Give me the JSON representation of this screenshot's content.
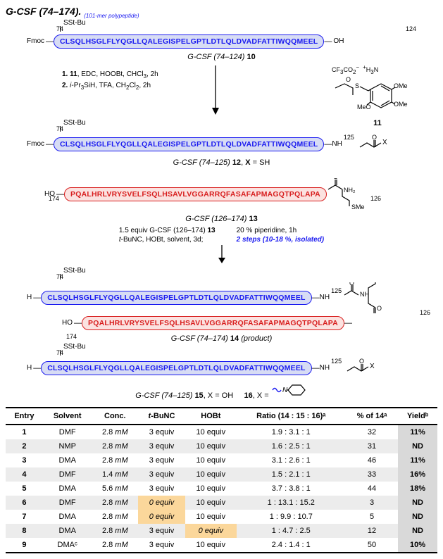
{
  "title": {
    "main": "G-CSF (74–174).",
    "sub": "(101-mer polypeptide)"
  },
  "seq": {
    "blue": "CLSQLHSGLFLYQGLLQALEGISPELGPTLDTLQLDVADFATTIWQQMEEL",
    "red": "PQALHRLVRYSVELFSQLHSAVLVGGARRQFASAFAPMAGQTPQLAPA"
  },
  "labels": {
    "sstbu": "SSt-Bu",
    "fmoc": "Fmoc",
    "oh": "OH",
    "h": "H",
    "ho": "HO",
    "nh": "NH",
    "nh2": "NH₂",
    "sme": "SMe",
    "pos74": "74",
    "pos124": "124",
    "pos125": "125",
    "pos126": "126",
    "pos174": "174",
    "gcsf_10": "G-CSF (74–124)",
    "num10": "10",
    "step1": "1. 11, EDC, HOOBt, CHCl₃, 2h",
    "step2": "2. i-Pr₃SiH, TFA, CH₂Cl₂, 2h",
    "salt": "CF₃CO₂⁻   ⁺H₃N",
    "num11": "11",
    "ome": "OMe",
    "meo": "MeO",
    "gcsf_12": "G-CSF (74–125)",
    "num12": "12",
    "xsh": ", X = SH",
    "gcsf_13": "G-CSF (126–174)",
    "num13": "13",
    "cond_left": "1.5 equiv G-CSF (126–174) 13\nt-BuNC, HOBt, solvent, 3d;",
    "cond_right_a": "20 % piperidine, 1h",
    "cond_right_b": "2 steps (10-18 %, isolated)",
    "gcsf_14": "G-CSF (74–174)",
    "num14": "14",
    "product": "(product)",
    "gcsf_15": "G-CSF (74–125)",
    "num15": "15",
    "xoh": ", X = OH",
    "num16": "16",
    "xeq": ", X ="
  },
  "table": {
    "headers": [
      "Entry",
      "Solvent",
      "Conc.",
      "t-BuNC",
      "HOBt",
      "Ratio (14 : 15 : 16)ᵃ",
      "% of 14ᵃ",
      "Yieldᵇ"
    ],
    "rows": [
      {
        "entry": "1",
        "solvent": "DMF",
        "conc": "2.8 mM",
        "tbunc": "3 equiv",
        "hobt": "10 equiv",
        "ratio": "1.9 : 3.1 : 1",
        "pct": "32",
        "yield": "11%",
        "hl": ""
      },
      {
        "entry": "2",
        "solvent": "NMP",
        "conc": "2.8 mM",
        "tbunc": "3 equiv",
        "hobt": "10 equiv",
        "ratio": "1.6 : 2.5 : 1",
        "pct": "31",
        "yield": "ND",
        "hl": ""
      },
      {
        "entry": "3",
        "solvent": "DMA",
        "conc": "2.8 mM",
        "tbunc": "3 equiv",
        "hobt": "10 equiv",
        "ratio": "3.1 : 2.6 : 1",
        "pct": "46",
        "yield": "11%",
        "hl": ""
      },
      {
        "entry": "4",
        "solvent": "DMF",
        "conc": "1.4 mM",
        "tbunc": "3 equiv",
        "hobt": "10 equiv",
        "ratio": "1.5 : 2.1 : 1",
        "pct": "33",
        "yield": "16%",
        "hl": ""
      },
      {
        "entry": "5",
        "solvent": "DMA",
        "conc": "5.6 mM",
        "tbunc": "3 equiv",
        "hobt": "10 equiv",
        "ratio": "3.7 : 3.8 : 1",
        "pct": "44",
        "yield": "18%",
        "hl": ""
      },
      {
        "entry": "6",
        "solvent": "DMF",
        "conc": "2.8 mM",
        "tbunc": "0 equiv",
        "hobt": "10 equiv",
        "ratio": "1 : 13.1 : 15.2",
        "pct": "3",
        "yield": "ND",
        "hl": "tbunc"
      },
      {
        "entry": "7",
        "solvent": "DMA",
        "conc": "2.8 mM",
        "tbunc": "0 equiv",
        "hobt": "10 equiv",
        "ratio": "1 : 9.9 : 10.7",
        "pct": "5",
        "yield": "ND",
        "hl": "tbunc"
      },
      {
        "entry": "8",
        "solvent": "DMA",
        "conc": "2.8 mM",
        "tbunc": "3 equiv",
        "hobt": "0 equiv",
        "ratio": "1 : 4.7 : 2.5",
        "pct": "12",
        "yield": "ND",
        "hl": "hobt"
      },
      {
        "entry": "9",
        "solvent": "DMAᶜ",
        "conc": "2.8 mM",
        "tbunc": "3 equiv",
        "hobt": "10 equiv",
        "ratio": "2.4 : 1.4 : 1",
        "pct": "50",
        "yield": "10%",
        "hl": ""
      }
    ]
  }
}
